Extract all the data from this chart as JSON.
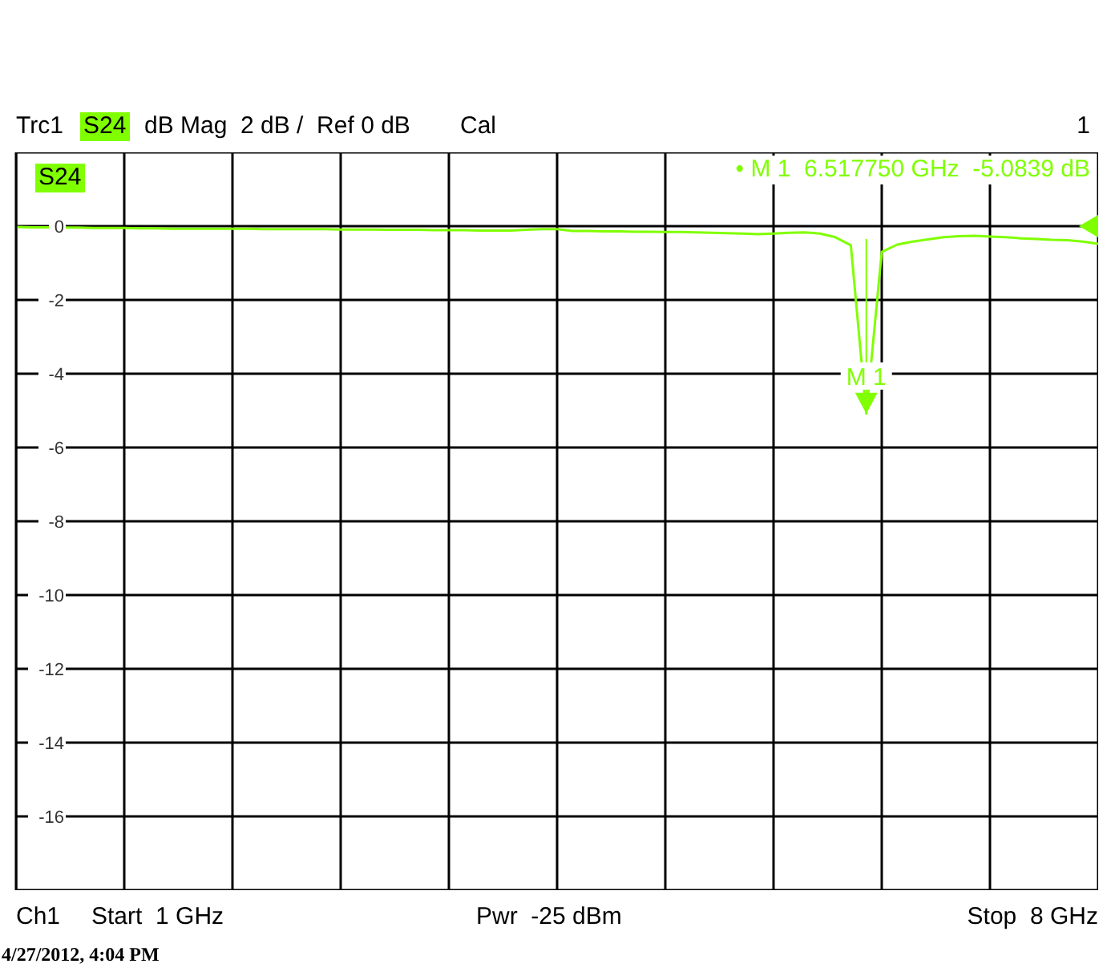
{
  "chart_data": {
    "type": "line",
    "categories": [
      null,
      null,
      null,
      null,
      null,
      null,
      null,
      null,
      null,
      null,
      null,
      null,
      null,
      null,
      null,
      null,
      null,
      null,
      null,
      null,
      null,
      null,
      null,
      null,
      null,
      null,
      null,
      null,
      null,
      null,
      null,
      null,
      null,
      null,
      null,
      null,
      null,
      null,
      null,
      null,
      null,
      null,
      null,
      null,
      null,
      null,
      null,
      null,
      null,
      null,
      null,
      null,
      null,
      null,
      null,
      null,
      null,
      null,
      null,
      null,
      null,
      null,
      null,
      null,
      null,
      null,
      null,
      null,
      null,
      null,
      null
    ],
    "series": [
      {
        "name": "S24",
        "color": "#80ff00",
        "values": [
          -0.02,
          -0.03,
          -0.03,
          -0.04,
          -0.04,
          -0.05,
          -0.05,
          -0.05,
          -0.06,
          -0.06,
          -0.07,
          -0.07,
          -0.07,
          -0.07,
          -0.07,
          -0.07,
          -0.08,
          -0.08,
          -0.08,
          -0.08,
          -0.08,
          -0.09,
          -0.09,
          -0.09,
          -0.1,
          -0.1,
          -0.1,
          -0.11,
          -0.11,
          -0.11,
          -0.12,
          -0.12,
          -0.12,
          -0.1,
          -0.08,
          -0.08,
          -0.13,
          -0.13,
          -0.14,
          -0.14,
          -0.15,
          -0.15,
          -0.16,
          -0.16,
          -0.17,
          -0.18,
          -0.19,
          -0.2,
          -0.22,
          -0.2,
          -0.18,
          -0.17,
          -0.2,
          -0.3,
          -0.52,
          -5.0839,
          -0.7,
          -0.5,
          -0.42,
          -0.36,
          -0.3,
          -0.27,
          -0.26,
          -0.28,
          -0.3,
          -0.33,
          -0.35,
          -0.37,
          -0.38,
          -0.42,
          -0.48
        ]
      }
    ],
    "ylim": [
      -18,
      2
    ],
    "yticks": [
      -16,
      -14,
      -12,
      -10,
      -8,
      -6,
      -4,
      -2,
      0
    ],
    "tick_labels": "y",
    "grid": true,
    "legend": "top left",
    "marker": "none",
    "line_style": "solid",
    "annotations": [
      "Trc1",
      "S24",
      "dB Mag  2 dB /  Ref 0 dB",
      "Cal",
      "1",
      "• M 1  6.517750 GHz  -5.0839 dB",
      "Ch1",
      "Start  1 GHz",
      "Pwr  -25 dBm",
      "Stop  8 GHz",
      "4/27/2012, 4:04 PM",
      {
        "text": "M 1",
        "y": -5.0839
      }
    ]
  }
}
